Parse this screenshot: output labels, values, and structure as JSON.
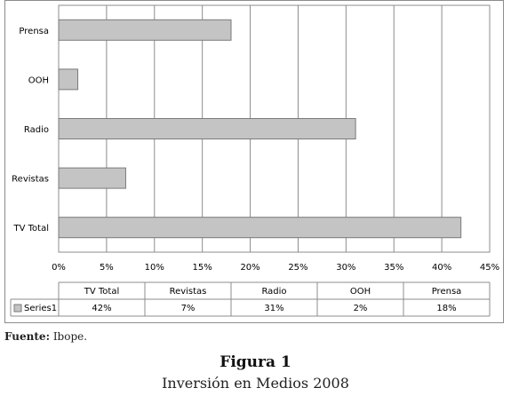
{
  "chart_data": {
    "type": "bar",
    "orientation": "horizontal",
    "categories": [
      "Prensa",
      "OOH",
      "Radio",
      "Revistas",
      "TV Total"
    ],
    "series": [
      {
        "name": "Series1",
        "values": [
          18,
          2,
          31,
          7,
          42
        ]
      }
    ],
    "x_ticks": [
      "0%",
      "5%",
      "10%",
      "15%",
      "20%",
      "25%",
      "30%",
      "35%",
      "40%",
      "45%"
    ],
    "xlim": [
      0,
      45
    ],
    "grid": true,
    "bar_color": "#c4c4c4",
    "bar_edge_color": "#7a7a7a",
    "data_table": {
      "columns": [
        "TV Total",
        "Revistas",
        "Radio",
        "OOH",
        "Prensa"
      ],
      "series_label": "Series1",
      "cells": [
        "42%",
        "7%",
        "31%",
        "2%",
        "18%"
      ]
    }
  },
  "caption": {
    "source_label": "Fuente:",
    "source_value": " Ibope.",
    "figure_number": "Figura 1",
    "figure_title": "Inversión en Medios 2008"
  }
}
